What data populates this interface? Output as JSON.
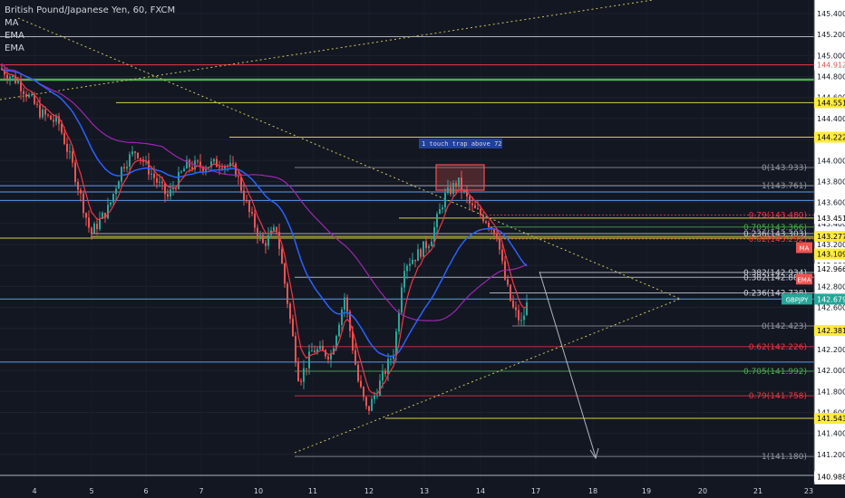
{
  "header": {
    "symbol_title": "British Pound/Japanese Yen, 60, FXCM",
    "indicators": [
      "MA",
      "EMA",
      "EMA"
    ]
  },
  "annotation": {
    "text": "1 touch trap above 72"
  },
  "colors": {
    "background": "#131722",
    "up_candle": "#26a69a",
    "down_candle": "#ef5350",
    "ema_fast": "#f23645",
    "ema_slow": "#2962ff",
    "ma": "#9c27b0",
    "gridline": "#b2b5be",
    "green_level": "#4caf50",
    "yellow_level": "#d4d14a",
    "blue_level": "#5d9cec"
  },
  "chart_data": {
    "type": "candlestick",
    "title": "British Pound/Japanese Yen, 60, FXCM",
    "ylim": [
      140.9,
      145.65
    ],
    "x_ticks": [
      "4",
      "5",
      "6",
      "7",
      "10",
      "11",
      "12",
      "13",
      "14",
      "17",
      "18",
      "19",
      "20",
      "21",
      "23"
    ],
    "y_ticks": [
      "145.400",
      "145.200",
      "145.000",
      "144.800",
      "144.600",
      "144.400",
      "144.200",
      "144.000",
      "143.800",
      "143.600",
      "143.400",
      "143.200",
      "143.000",
      "142.800",
      "142.600",
      "142.400",
      "142.200",
      "142.000",
      "141.800",
      "141.600",
      "141.400",
      "141.200",
      "141.000"
    ],
    "price_labels": [
      {
        "text": "144.912",
        "value": 144.912,
        "bg": "#ffffff",
        "fg": "#ef5350"
      },
      {
        "text": "144.551",
        "value": 144.551,
        "bg": "#ffeb3b",
        "fg": "#000000"
      },
      {
        "text": "144.222",
        "value": 144.222,
        "bg": "#ffeb3b",
        "fg": "#000000"
      },
      {
        "text": "143.451",
        "value": 143.451,
        "bg": "#ffffff",
        "fg": "#000000"
      },
      {
        "text": "143.277",
        "value": 143.277,
        "bg": "#ffeb3b",
        "fg": "#000000"
      },
      {
        "text": "MA",
        "value": 143.17,
        "bg": "#ef5350",
        "fg": "#ffffff"
      },
      {
        "text": "143.109",
        "value": 143.109,
        "bg": "#ffeb3b",
        "fg": "#000000"
      },
      {
        "text": "142.966",
        "value": 142.966,
        "bg": "#ffffff",
        "fg": "#000000"
      },
      {
        "text": "EMA",
        "value": 142.87,
        "bg": "#ef5350",
        "fg": "#ffffff"
      },
      {
        "text": "GBPJPY",
        "value": 142.679,
        "bg": "#26a69a",
        "fg": "#ffffff",
        "tag": true
      },
      {
        "text": "142.679",
        "value": 142.679,
        "bg": "#26a69a",
        "fg": "#ffffff"
      },
      {
        "text": "142.381",
        "value": 142.381,
        "bg": "#ffeb3b",
        "fg": "#000000"
      },
      {
        "text": "141.543",
        "value": 141.543,
        "bg": "#ffeb3b",
        "fg": "#000000"
      },
      {
        "text": "140.988",
        "value": 140.988,
        "bg": "#ffffff",
        "fg": "#000000"
      }
    ],
    "fib_labels": [
      {
        "text": "0(143.933)",
        "value": 143.933,
        "color": "#9598a1"
      },
      {
        "text": "1(143.761)",
        "value": 143.761,
        "color": "#9598a1"
      },
      {
        "text": "0.79(143.480)",
        "value": 143.48,
        "color": "#f23645"
      },
      {
        "text": "0.705(143.366)",
        "value": 143.366,
        "color": "#4caf50"
      },
      {
        "text": "0.236(143.303)",
        "value": 143.303,
        "color": "#d1d4dc"
      },
      {
        "text": "0.62(143.252)",
        "value": 143.252,
        "color": "#f23645"
      },
      {
        "text": "0.382(142.934)",
        "value": 142.934,
        "color": "#d1d4dc"
      },
      {
        "text": "0.382(142.887)",
        "value": 142.887,
        "color": "#d1d4dc"
      },
      {
        "text": "0.236(142.738)",
        "value": 142.738,
        "color": "#d1d4dc"
      },
      {
        "text": "0(142.423)",
        "value": 142.423,
        "color": "#9598a1"
      },
      {
        "text": "0.62(142.226)",
        "value": 142.226,
        "color": "#f23645"
      },
      {
        "text": "0.705(141.992)",
        "value": 141.992,
        "color": "#4caf50"
      },
      {
        "text": "0.79(141.758)",
        "value": 141.758,
        "color": "#f23645"
      },
      {
        "text": "1(141.180)",
        "value": 141.18,
        "color": "#9598a1"
      }
    ],
    "levels": [
      {
        "value": 145.18,
        "color": "#b2b5be"
      },
      {
        "value": 144.912,
        "color": "#f23645"
      },
      {
        "value": 144.77,
        "color": "#4caf50",
        "thick": true
      },
      {
        "value": 143.76,
        "color": "#5d9cec"
      },
      {
        "value": 143.7,
        "color": "#5d9cec"
      },
      {
        "value": 143.62,
        "color": "#5d9cec"
      },
      {
        "value": 143.26,
        "color": "#d4d14a"
      },
      {
        "value": 142.68,
        "color": "#5d9cec"
      },
      {
        "value": 142.08,
        "color": "#5d9cec"
      },
      {
        "value": 141.0,
        "color": "#b2b5be"
      }
    ]
  }
}
